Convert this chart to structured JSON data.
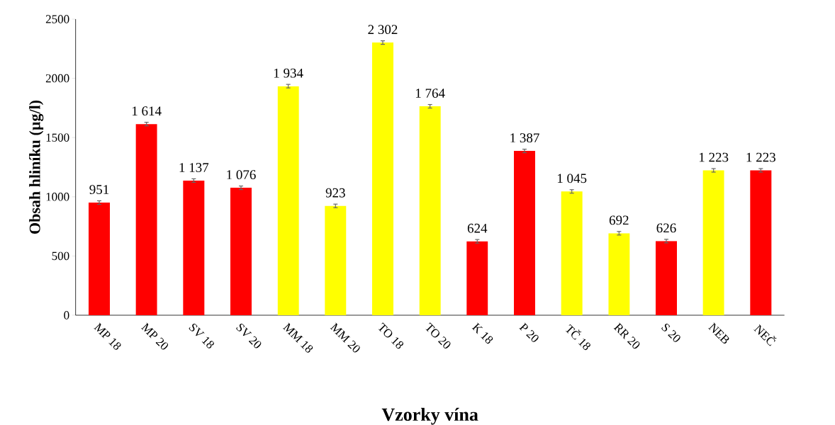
{
  "chart_data": {
    "type": "bar",
    "xlabel": "Vzorky vína",
    "ylabel": "Obsah hliníku (µg/l)",
    "categories": [
      "MP 18",
      "MP 20",
      "SV 18",
      "SV 20",
      "MM 18",
      "MM 20",
      "TO 18",
      "TO 20",
      "K 18",
      "P 20",
      "TČ 18",
      "RR 20",
      "S 20",
      "NEB",
      "NEČ"
    ],
    "values": [
      951,
      1614,
      1137,
      1076,
      1934,
      923,
      2302,
      1764,
      624,
      1387,
      1045,
      692,
      626,
      1223,
      1223
    ],
    "value_labels": [
      "951",
      "1 614",
      "1 137",
      "1 076",
      "1 934",
      "923",
      "2 302",
      "1 764",
      "624",
      "1 387",
      "1 045",
      "692",
      "626",
      "1 223",
      "1 223"
    ],
    "colors": [
      "#ff0000",
      "#ff0000",
      "#ff0000",
      "#ff0000",
      "#ffff00",
      "#ffff00",
      "#ffff00",
      "#ffff00",
      "#ff0000",
      "#ff0000",
      "#ffff00",
      "#ffff00",
      "#ff0000",
      "#ffff00",
      "#ff0000"
    ],
    "errors": [
      15,
      15,
      15,
      15,
      15,
      15,
      15,
      15,
      15,
      15,
      15,
      15,
      15,
      15,
      15
    ],
    "ylim": [
      0,
      2500
    ],
    "yticks": [
      0,
      500,
      1000,
      1500,
      2000,
      2500
    ],
    "grid": false
  }
}
